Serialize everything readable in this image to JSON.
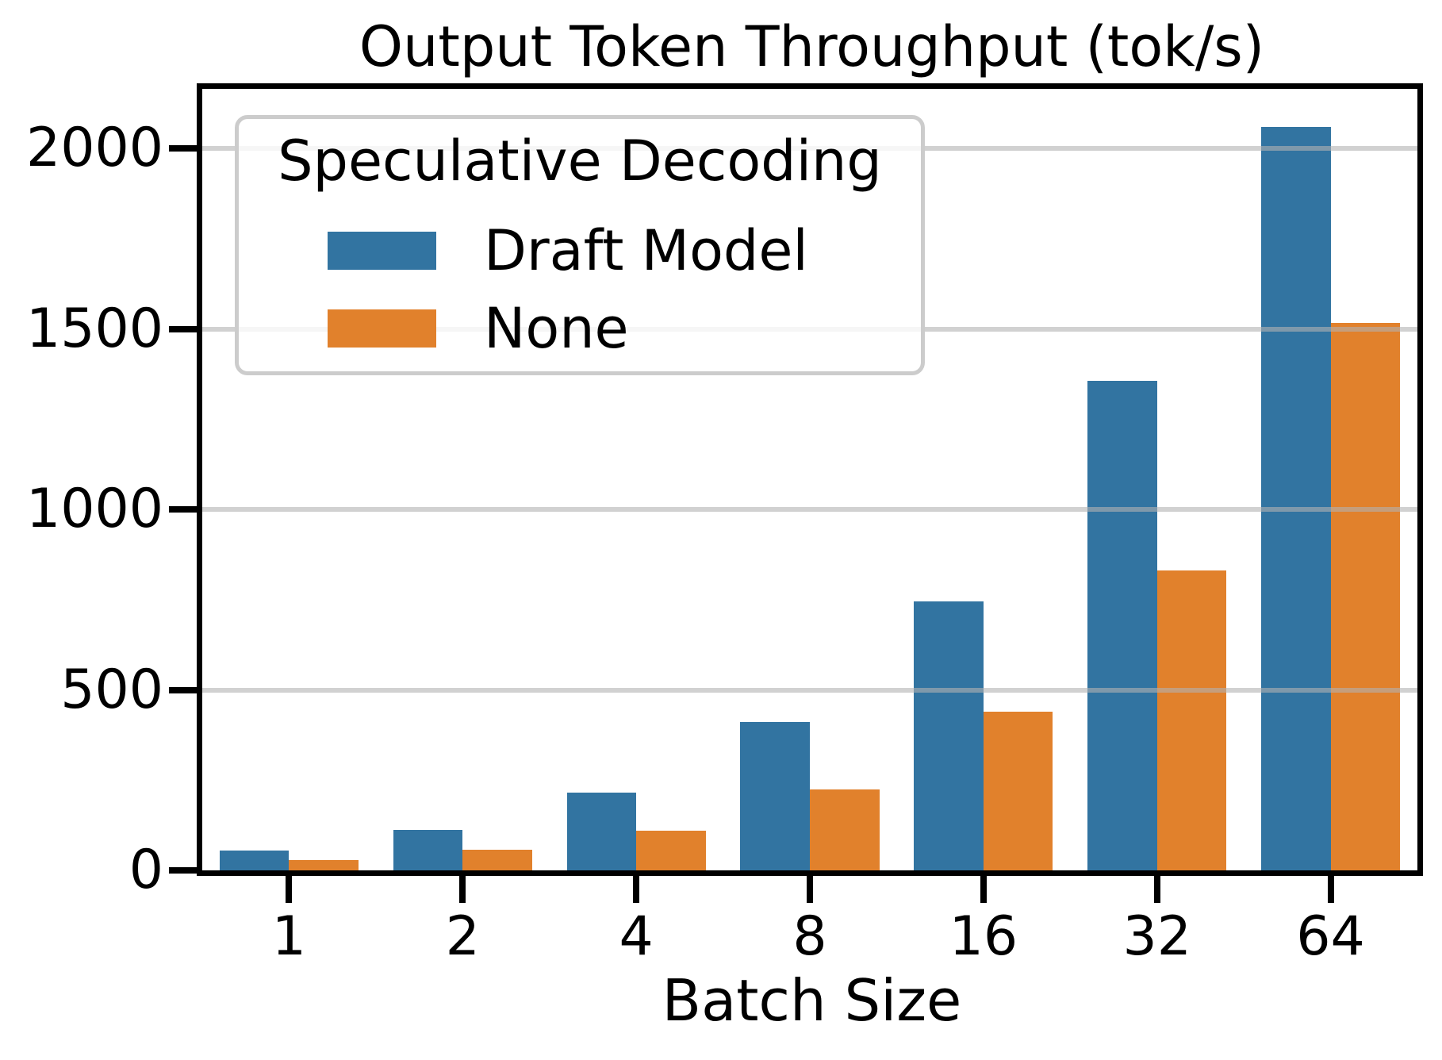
{
  "title": "Output Token Throughput (tok/s)",
  "legend": {
    "title": "Speculative Decoding",
    "entries": [
      {
        "label": "Draft Model",
        "color": "#3274a1"
      },
      {
        "label": "None",
        "color": "#e1812c"
      }
    ]
  },
  "colors": {
    "bar_blue": "#3274a1",
    "bar_orange": "#e1812c",
    "gridline": "#dcdcdc",
    "legend_border": "#cccccc",
    "spine": "#000000",
    "background": "#ffffff"
  },
  "chart_data": {
    "type": "bar",
    "title": "Output Token Throughput (tok/s)",
    "xlabel": "Batch Size",
    "ylabel": "",
    "categories": [
      "1",
      "2",
      "4",
      "8",
      "16",
      "32",
      "64"
    ],
    "series": [
      {
        "name": "Draft Model",
        "color": "#3274a1",
        "values": [
          56,
          113,
          215,
          410,
          745,
          1356,
          2060
        ]
      },
      {
        "name": "None",
        "color": "#e1812c",
        "values": [
          29,
          57,
          110,
          225,
          440,
          831,
          1517
        ]
      }
    ],
    "ylim": [
      0,
      2165
    ],
    "yticks": [
      0,
      500,
      1000,
      1500,
      2000
    ],
    "grid": true,
    "grid_over_bars": true,
    "legend_title": "Speculative Decoding",
    "legend_position": "upper left",
    "bar_width_fraction": 0.4
  }
}
